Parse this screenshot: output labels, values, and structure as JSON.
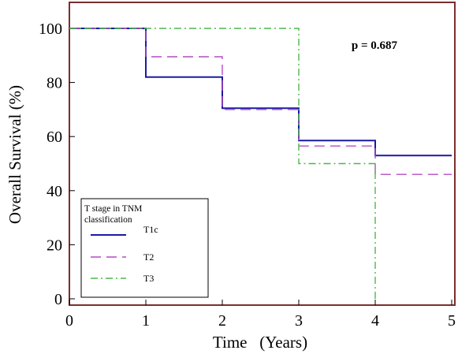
{
  "chart_data": {
    "type": "line",
    "subtype": "kaplan-meier step curves",
    "title": "",
    "xlabel": "Time   (Years)",
    "ylabel": "Overall Survival (%)",
    "xlim": [
      0,
      5
    ],
    "ylim": [
      0,
      100
    ],
    "x_ticks": [
      0,
      1,
      2,
      3,
      4,
      5
    ],
    "y_ticks": [
      0,
      20,
      40,
      60,
      80,
      100
    ],
    "grid": false,
    "annotation": "p = 0.687",
    "legend": {
      "title": "T stage in TNM classification",
      "title_line1": "T stage in TNM",
      "title_line2": "classification",
      "placement": "lower-left",
      "entries": [
        "T1c",
        "T2",
        "T3"
      ]
    },
    "series": [
      {
        "name": "T1c",
        "color": "#1a1aa6",
        "line_style": "solid",
        "points": [
          [
            0,
            100
          ],
          [
            1,
            100
          ],
          [
            1,
            82
          ],
          [
            2,
            82
          ],
          [
            2,
            70.5
          ],
          [
            3,
            70.5
          ],
          [
            3,
            58.5
          ],
          [
            4,
            58.5
          ],
          [
            4,
            53
          ],
          [
            5,
            53
          ]
        ]
      },
      {
        "name": "T2",
        "color": "#b44bc4",
        "line_style": "dashed",
        "points": [
          [
            0,
            100
          ],
          [
            1,
            100
          ],
          [
            1,
            89.5
          ],
          [
            2,
            89.5
          ],
          [
            2,
            70
          ],
          [
            3,
            70
          ],
          [
            3,
            56.5
          ],
          [
            4,
            56.5
          ],
          [
            4,
            46
          ],
          [
            5,
            46
          ]
        ]
      },
      {
        "name": "T3",
        "color": "#4cb84c",
        "line_style": "dash-dot",
        "points": [
          [
            0,
            100
          ],
          [
            3,
            100
          ],
          [
            3,
            50
          ],
          [
            4,
            50
          ],
          [
            4,
            0
          ]
        ]
      }
    ],
    "frame_color": "#7a2e2e"
  }
}
